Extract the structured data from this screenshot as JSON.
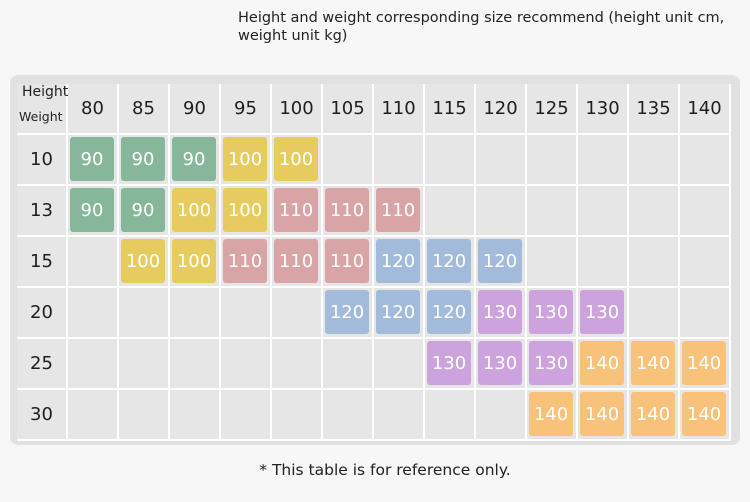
{
  "title": "Height and weight corresponding size recommend (height unit cm, weight unit kg)",
  "table": {
    "corner_height_label": "Height",
    "corner_weight_label": "Weight",
    "heights": [
      "80",
      "85",
      "90",
      "95",
      "100",
      "105",
      "110",
      "115",
      "120",
      "125",
      "130",
      "135",
      "140"
    ],
    "weights": [
      "10",
      "13",
      "15",
      "20",
      "25",
      "30"
    ],
    "sizes": [
      [
        "90",
        "90",
        "90",
        "100",
        "100",
        "",
        "",
        "",
        "",
        "",
        "",
        "",
        ""
      ],
      [
        "90",
        "90",
        "100",
        "100",
        "110",
        "110",
        "110",
        "",
        "",
        "",
        "",
        "",
        ""
      ],
      [
        "",
        "100",
        "100",
        "110",
        "110",
        "110",
        "120",
        "120",
        "120",
        "",
        "",
        "",
        ""
      ],
      [
        "",
        "",
        "",
        "",
        "",
        "120",
        "120",
        "120",
        "130",
        "130",
        "130",
        "",
        ""
      ],
      [
        "",
        "",
        "",
        "",
        "",
        "",
        "",
        "130",
        "130",
        "130",
        "140",
        "140",
        "140"
      ],
      [
        "",
        "",
        "",
        "",
        "",
        "",
        "",
        "",
        "",
        "140",
        "140",
        "140",
        "140"
      ]
    ],
    "size_colors": {
      "90": "#86b79a",
      "100": "#e6cc5f",
      "110": "#d9a4a6",
      "120": "#a3bbdb",
      "130": "#cda3de",
      "140": "#f9c27b"
    }
  },
  "note": "* This table is for reference only."
}
